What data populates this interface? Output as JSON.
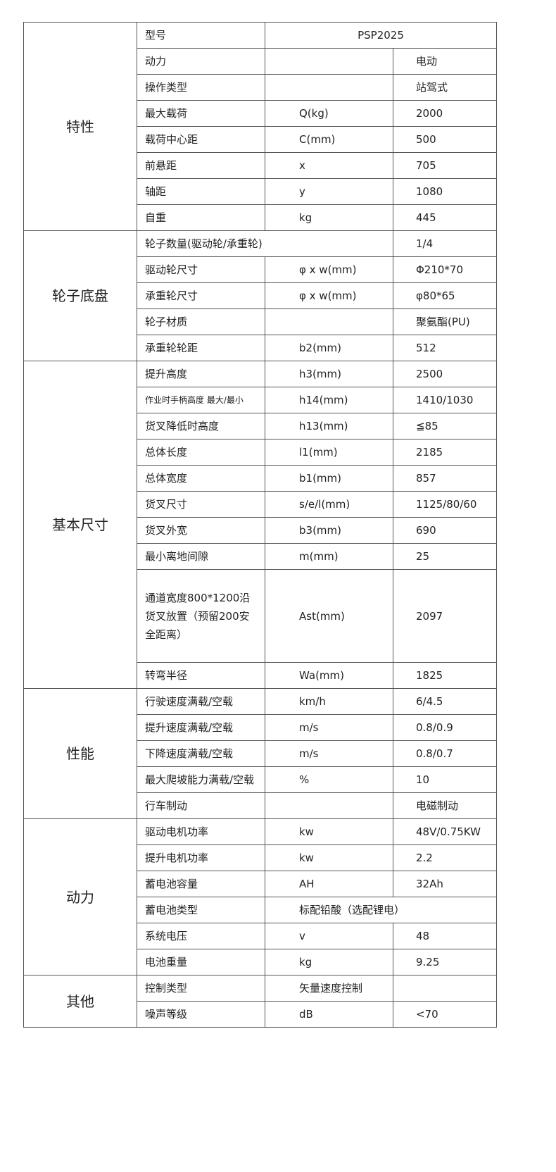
{
  "groups": [
    {
      "name": "特性",
      "rows": [
        {
          "label": "型号",
          "value": "PSP2025",
          "merge": "unit-value"
        },
        {
          "label": "动力",
          "unit": "",
          "value": "电动"
        },
        {
          "label": "操作类型",
          "unit": "",
          "value": "站驾式"
        },
        {
          "label": "最大载荷",
          "unit": "Q(kg)",
          "value": "2000"
        },
        {
          "label": "载荷中心距",
          "unit": "C(mm)",
          "value": "500"
        },
        {
          "label": "前悬距",
          "unit": "x",
          "value": "705"
        },
        {
          "label": "轴距",
          "unit": "y",
          "value": "1080"
        },
        {
          "label": "自重",
          "unit": "kg",
          "value": "445"
        }
      ]
    },
    {
      "name": "轮子底盘",
      "rows": [
        {
          "label": "轮子数量(驱动轮/承重轮)",
          "value": "1/4",
          "merge": "label-unit"
        },
        {
          "label": "驱动轮尺寸",
          "unit": "φ x w(mm)",
          "value": "Φ210*70"
        },
        {
          "label": "承重轮尺寸",
          "unit": "φ x w(mm)",
          "value": "φ80*65"
        },
        {
          "label": "轮子材质",
          "unit": "",
          "value": "聚氨酯(PU)"
        },
        {
          "label": "承重轮轮距",
          "unit": "b2(mm)",
          "value": "512"
        }
      ]
    },
    {
      "name": "基本尺寸",
      "rows": [
        {
          "label": "提升高度",
          "unit": "h3(mm)",
          "value": "2500"
        },
        {
          "label": "作业时手柄高度  最大/最小",
          "unit": "h14(mm)",
          "value": "1410/1030",
          "small": true
        },
        {
          "label": "货叉降低时高度",
          "unit": "h13(mm)",
          "value": "≦85"
        },
        {
          "label": "总体长度",
          "unit": "l1(mm)",
          "value": "2185"
        },
        {
          "label": "总体宽度",
          "unit": "b1(mm)",
          "value": "857"
        },
        {
          "label": "货叉尺寸",
          "unit": "s/e/l(mm)",
          "value": "1125/80/60"
        },
        {
          "label": "货叉外宽",
          "unit": "b3(mm)",
          "value": "690"
        },
        {
          "label": "最小离地间隙",
          "unit": "m(mm)",
          "value": "25"
        },
        {
          "label": "通道宽度800*1200沿货叉放置（预留200安全距离）",
          "unit": "Ast(mm)",
          "value": "2097",
          "tall": true
        },
        {
          "label": "转弯半径",
          "unit": "Wa(mm)",
          "value": "1825"
        }
      ]
    },
    {
      "name": "性能",
      "rows": [
        {
          "label": "行驶速度满载/空载",
          "unit": "km/h",
          "value": "6/4.5"
        },
        {
          "label": "提升速度满载/空载",
          "unit": "m/s",
          "value": "0.8/0.9"
        },
        {
          "label": "下降速度满载/空载",
          "unit": "m/s",
          "value": "0.8/0.7"
        },
        {
          "label": "最大爬坡能力满载/空载",
          "unit": "%",
          "value": "10"
        },
        {
          "label": "行车制动",
          "unit": "",
          "value": "电磁制动"
        }
      ]
    },
    {
      "name": "动力",
      "rows": [
        {
          "label": "驱动电机功率",
          "unit": "kw",
          "value": "48V/0.75KW"
        },
        {
          "label": "提升电机功率",
          "unit": "kw",
          "value": "2.2"
        },
        {
          "label": "蓄电池容量",
          "unit": "AH",
          "value": "32Ah"
        },
        {
          "label": "蓄电池类型",
          "value": "标配铅酸（选配锂电）",
          "merge": "unit-value-left"
        },
        {
          "label": "系统电压",
          "unit": "v",
          "value": "48"
        },
        {
          "label": "电池重量",
          "unit": "kg",
          "value": "9.25"
        }
      ]
    },
    {
      "name": "其他",
      "rows": [
        {
          "label": "控制类型",
          "unit": "矢量速度控制",
          "value": ""
        },
        {
          "label": "噪声等级",
          "unit": "dB",
          "value": "<70"
        }
      ]
    }
  ]
}
